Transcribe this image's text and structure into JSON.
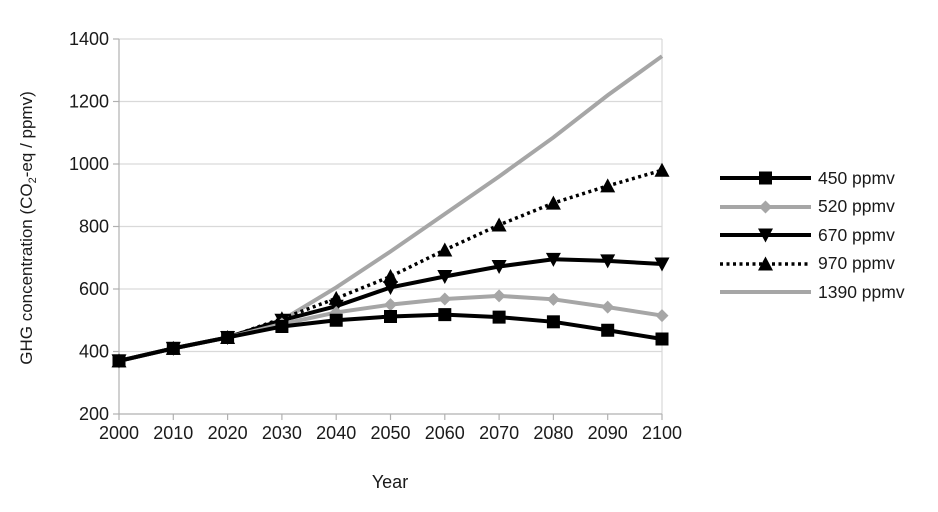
{
  "chart_data": {
    "type": "line",
    "xlabel": "Year",
    "ylabel": "GHG concentration (CO2-eq / ppmv)",
    "ylabel_parts": {
      "prefix": "GHG concentration (CO",
      "sub": "2",
      "suffix": "-eq / ppmv)"
    },
    "x": [
      2000,
      2010,
      2020,
      2030,
      2040,
      2050,
      2060,
      2070,
      2080,
      2090,
      2100
    ],
    "xlim": [
      2000,
      2100
    ],
    "ylim": [
      200,
      1400
    ],
    "yticks": [
      200,
      400,
      600,
      800,
      1000,
      1200,
      1400
    ],
    "grid": true,
    "legend_position": "right",
    "series": [
      {
        "name": "450 ppmv",
        "color": "#000000",
        "marker": "square",
        "line": "solid",
        "values": [
          370,
          410,
          445,
          480,
          500,
          512,
          518,
          510,
          495,
          468,
          440
        ]
      },
      {
        "name": "520 ppmv",
        "color": "#a6a6a6",
        "marker": "diamond",
        "line": "solid",
        "values": [
          370,
          410,
          445,
          488,
          525,
          550,
          568,
          578,
          567,
          542,
          515
        ]
      },
      {
        "name": "670 ppmv",
        "color": "#000000",
        "marker": "triangle-down",
        "line": "solid",
        "values": [
          370,
          410,
          445,
          500,
          545,
          605,
          640,
          672,
          695,
          690,
          680
        ]
      },
      {
        "name": "970 ppmv",
        "color": "#000000",
        "marker": "triangle-up",
        "line": "dotted",
        "values": [
          370,
          410,
          445,
          505,
          570,
          640,
          725,
          805,
          875,
          930,
          980
        ]
      },
      {
        "name": "1390 ppmv",
        "color": "#a6a6a6",
        "marker": "none",
        "line": "solid",
        "values": [
          370,
          410,
          445,
          500,
          605,
          720,
          840,
          960,
          1085,
          1220,
          1345
        ]
      }
    ]
  },
  "colors": {
    "background": "#ffffff",
    "gridline": "#d9d9d9",
    "axis": "#b0b0b0",
    "text": "#1a1a1a"
  }
}
